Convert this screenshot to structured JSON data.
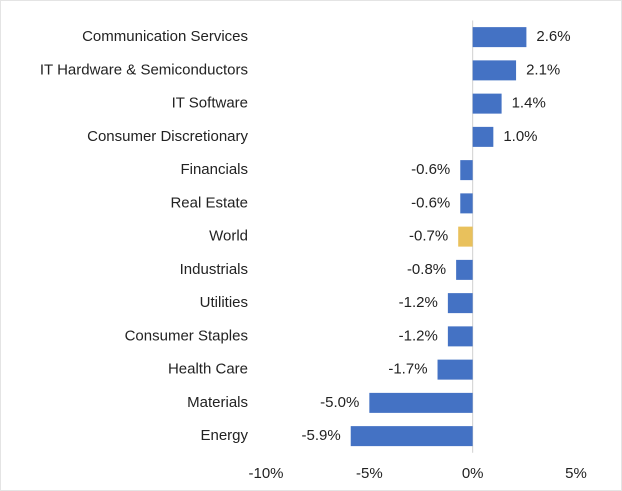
{
  "chart_data": {
    "type": "hbar",
    "categories": [
      "Communication Services",
      "IT Hardware & Semiconductors",
      "IT Software",
      "Consumer Discretionary",
      "Financials",
      "Real Estate",
      "World",
      "Industrials",
      "Utilities",
      "Consumer Staples",
      "Health Care",
      "Materials",
      "Energy"
    ],
    "values": [
      2.6,
      2.1,
      1.4,
      1.0,
      -0.6,
      -0.6,
      -0.7,
      -0.8,
      -1.2,
      -1.2,
      -1.7,
      -5.0,
      -5.9
    ],
    "value_labels": [
      "2.6%",
      "2.1%",
      "1.4%",
      "1.0%",
      "-0.6%",
      "-0.6%",
      "-0.7%",
      "-0.8%",
      "-1.2%",
      "-1.2%",
      "-1.7%",
      "-5.0%",
      "-5.9%"
    ],
    "colors": [
      "#4472c4",
      "#4472c4",
      "#4472c4",
      "#4472c4",
      "#4472c4",
      "#4472c4",
      "#e9c15c",
      "#4472c4",
      "#4472c4",
      "#4472c4",
      "#4472c4",
      "#4472c4",
      "#4472c4"
    ],
    "xlim": [
      -10,
      5
    ],
    "xticks": [
      {
        "value": -10,
        "label": "-10%"
      },
      {
        "value": -5,
        "label": "-5%"
      },
      {
        "value": 0,
        "label": "0%"
      },
      {
        "value": 5,
        "label": "5%"
      }
    ],
    "grid": false
  }
}
